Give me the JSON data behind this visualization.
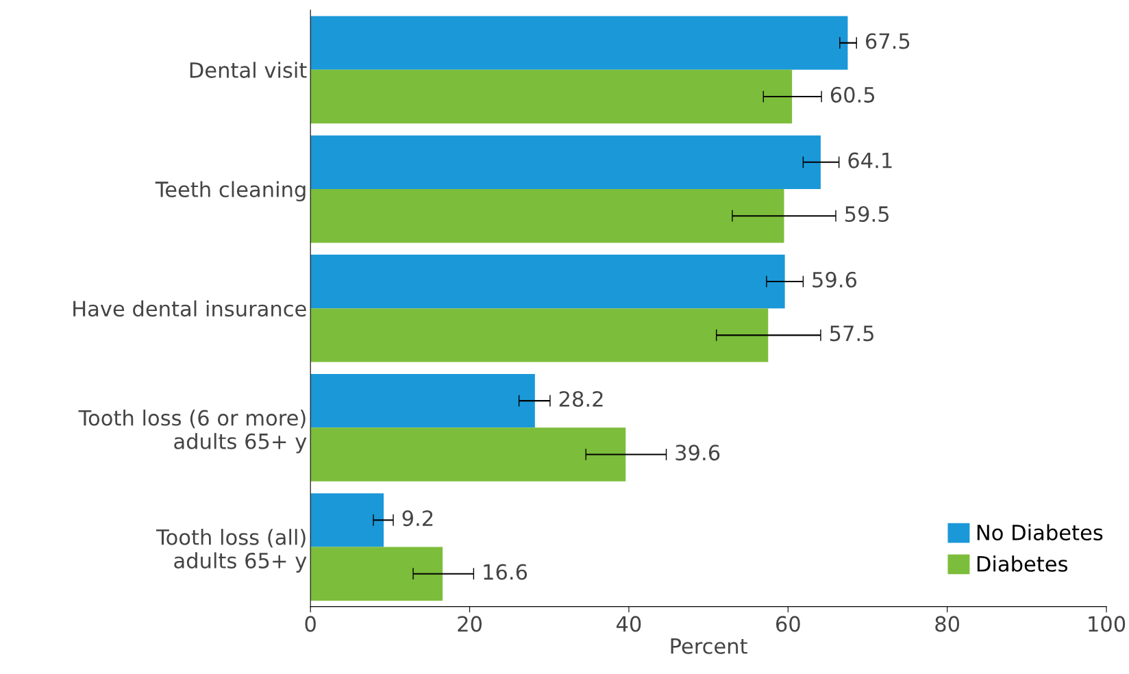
{
  "chart_data": {
    "type": "bar",
    "orientation": "horizontal",
    "xlabel": "Percent",
    "categories": [
      "Dental visit",
      "Teeth cleaning",
      "Have dental insurance",
      "Tooth loss (6 or more)\nadults 65+ y",
      "Tooth loss (all)\nadults 65+ y"
    ],
    "series": [
      {
        "name": "No Diabetes",
        "color": "#1b98d8",
        "values": [
          67.5,
          64.1,
          59.6,
          28.2,
          9.2
        ],
        "errors": [
          [
            66.5,
            68.6
          ],
          [
            61.9,
            66.4
          ],
          [
            57.3,
            61.9
          ],
          [
            26.2,
            30.1
          ],
          [
            7.9,
            10.4
          ]
        ]
      },
      {
        "name": "Diabetes",
        "color": "#7cbd3b",
        "values": [
          60.5,
          59.5,
          57.5,
          39.6,
          16.6
        ],
        "errors": [
          [
            56.9,
            64.2
          ],
          [
            53.0,
            66.0
          ],
          [
            51.0,
            64.1
          ],
          [
            34.6,
            44.7
          ],
          [
            12.9,
            20.5
          ]
        ]
      }
    ],
    "xlim": [
      0,
      100
    ],
    "xticks": [
      0,
      20,
      40,
      60,
      80,
      100
    ],
    "data_labels": true,
    "grid": false,
    "legend": "bottom right"
  }
}
